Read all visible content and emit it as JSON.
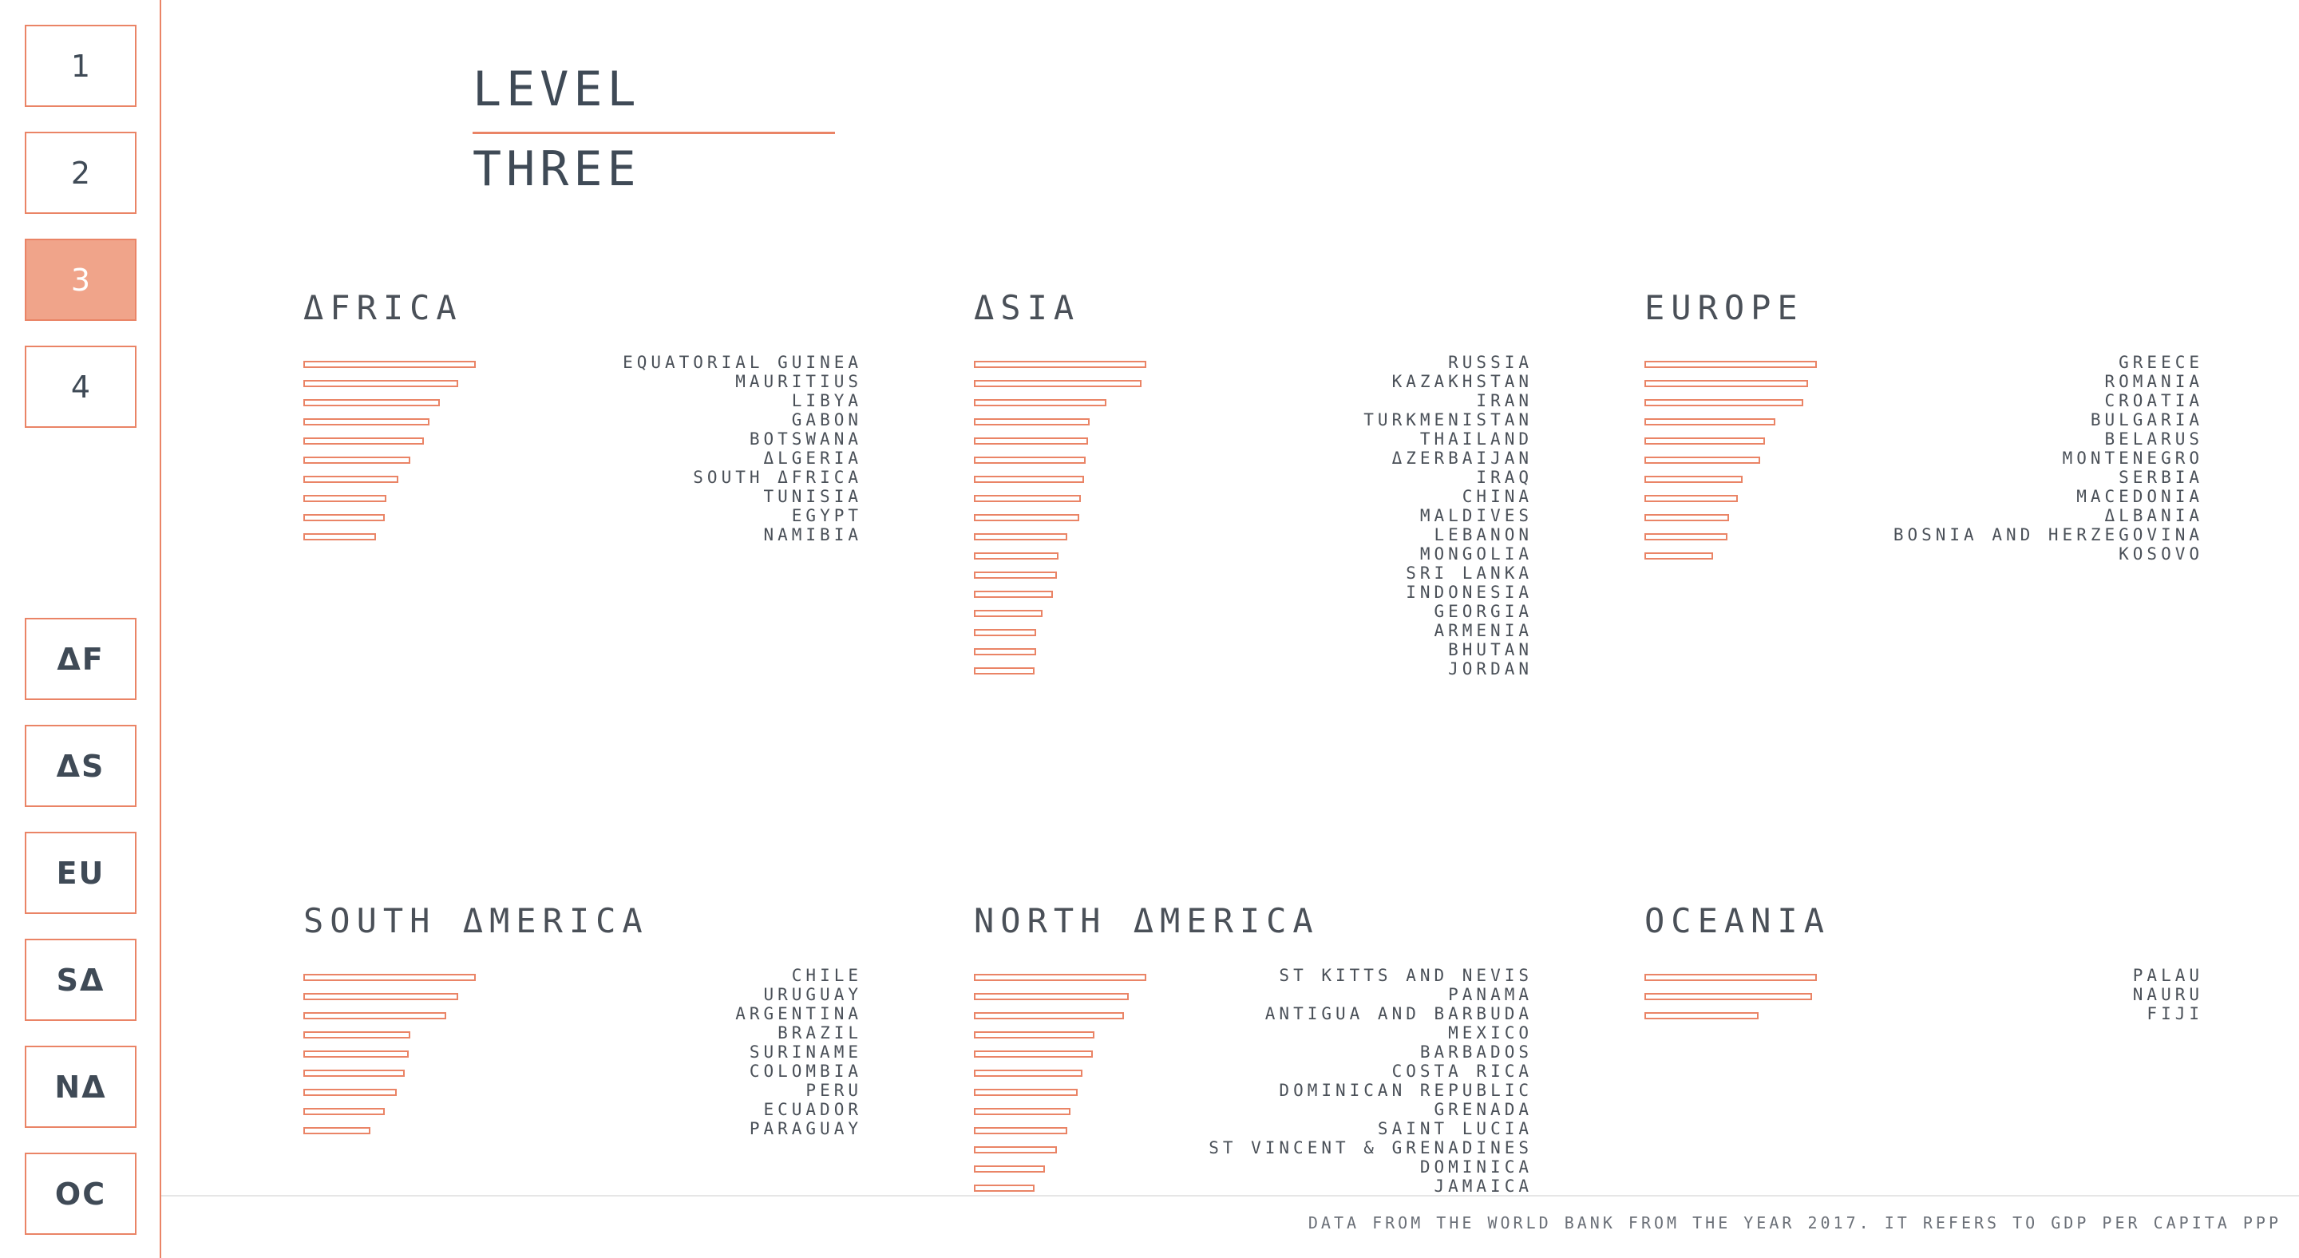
{
  "nav": {
    "levels": [
      "1",
      "2",
      "3",
      "4"
    ],
    "active_level": "3",
    "continents": [
      "ΔF",
      "ΔS",
      "EU",
      "SΔ",
      "NΔ",
      "OC"
    ]
  },
  "title": "LEVEL THREE",
  "footer": "DATA FROM THE WORLD BANK FROM THE YEAR 2017. IT REFERS TO GDP PER CAPITA PPP",
  "colors": {
    "accent": "#ea8466",
    "active_fill": "#f0a48a",
    "text": "#4a5058"
  },
  "continents": [
    {
      "name": "ΔFRICA",
      "countries": [
        "EQUATORIAL GUINEA",
        "MAURITIUS",
        "LIBYA",
        "GABON",
        "BOTSWANA",
        "ΔLGERIA",
        "SOUTH ΔFRICA",
        "TUNISIA",
        "EGYPT",
        "NAMIBIA"
      ],
      "values": [
        1.0,
        0.9,
        0.79,
        0.73,
        0.7,
        0.62,
        0.55,
        0.48,
        0.47,
        0.42
      ]
    },
    {
      "name": "ΔSIA",
      "countries": [
        "RUSSIA",
        "KAZAKHSTAN",
        "IRAN",
        "TURKMENISTAN",
        "THAILAND",
        "ΔZERBAIJAN",
        "IRAQ",
        "CHINA",
        "MALDIVES",
        "LEBANON",
        "MONGOLIA",
        "SRI LANKA",
        "INDONESIA",
        "GEORGIA",
        "ARMENIA",
        "BHUTAN",
        "JORDAN"
      ],
      "values": [
        1.0,
        0.97,
        0.77,
        0.67,
        0.66,
        0.65,
        0.64,
        0.62,
        0.61,
        0.54,
        0.49,
        0.48,
        0.46,
        0.4,
        0.36,
        0.36,
        0.35
      ]
    },
    {
      "name": "EUROPE",
      "countries": [
        "GREECE",
        "ROMANIA",
        "CROATIA",
        "BULGARIA",
        "BELARUS",
        "MONTENEGRO",
        "SERBIA",
        "MACEDONIA",
        "ΔLBANIA",
        "BOSNIA AND HERZEGOVINA",
        "KOSOVO"
      ],
      "values": [
        1.0,
        0.95,
        0.92,
        0.76,
        0.7,
        0.67,
        0.57,
        0.54,
        0.49,
        0.48,
        0.4
      ]
    },
    {
      "name": "SOUTH ΔMERICA",
      "countries": [
        "CHILE",
        "URUGUAY",
        "ARGENTINA",
        "BRAZIL",
        "SURINAME",
        "COLOMBIA",
        "PERU",
        "ECUADOR",
        "PARAGUAY"
      ],
      "values": [
        1.0,
        0.9,
        0.83,
        0.62,
        0.61,
        0.59,
        0.54,
        0.47,
        0.39
      ]
    },
    {
      "name": "NORTH ΔMERICA",
      "countries": [
        "ST KITTS AND NEVIS",
        "PANAMA",
        "ANTIGUA AND BARBUDA",
        "MEXICO",
        "BARBADOS",
        "COSTA RICA",
        "DOMINICAN REPUBLIC",
        "GRENADA",
        "SAINT LUCIA",
        "ST VINCENT & GRENADINES",
        "DOMINICA",
        "JAMAICA"
      ],
      "values": [
        1.0,
        0.9,
        0.87,
        0.7,
        0.69,
        0.63,
        0.6,
        0.56,
        0.54,
        0.48,
        0.41,
        0.35
      ]
    },
    {
      "name": "OCEANIA",
      "countries": [
        "PALAU",
        "NAURU",
        "FIJI"
      ],
      "values": [
        1.0,
        0.97,
        0.66
      ]
    }
  ]
}
